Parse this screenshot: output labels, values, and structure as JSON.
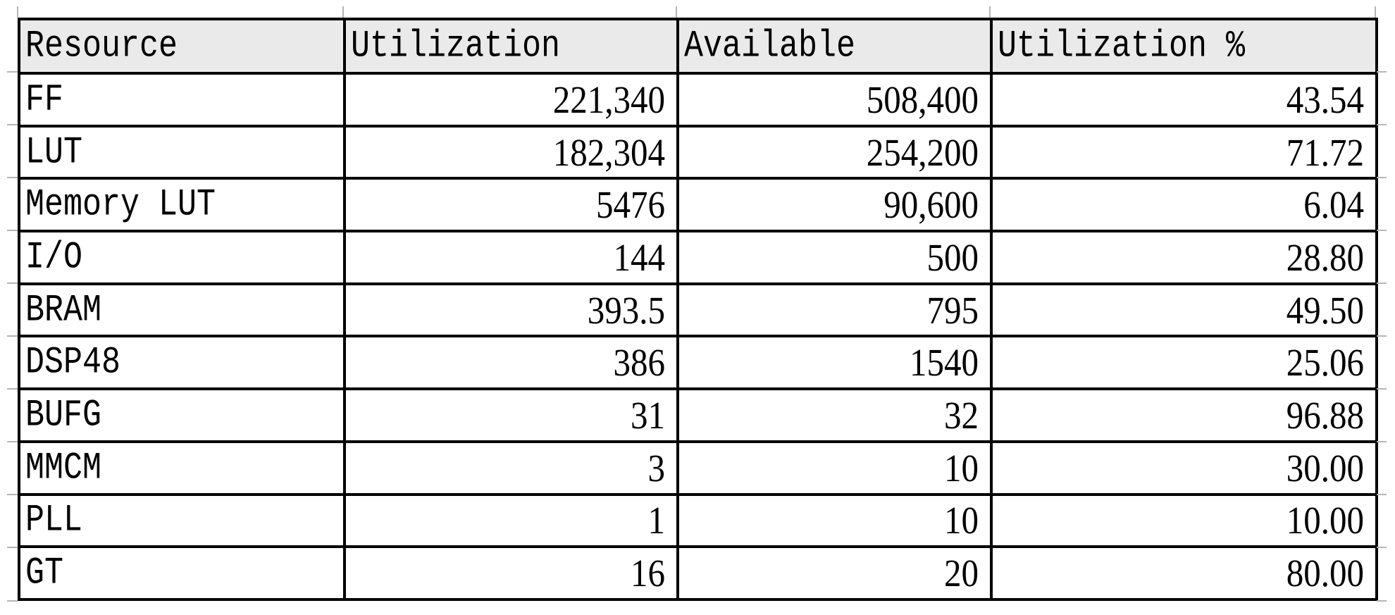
{
  "table": {
    "columns": [
      "Resource",
      "Utilization",
      "Available",
      "Utilization %"
    ],
    "rows": [
      {
        "resource": "FF",
        "utilization": "221,340",
        "available": "508,400",
        "utilization_pct": "43.54"
      },
      {
        "resource": "LUT",
        "utilization": "182,304",
        "available": "254,200",
        "utilization_pct": "71.72"
      },
      {
        "resource": "Memory LUT",
        "utilization": "5476",
        "available": "90,600",
        "utilization_pct": "6.04"
      },
      {
        "resource": "I/O",
        "utilization": "144",
        "available": "500",
        "utilization_pct": "28.80"
      },
      {
        "resource": "BRAM",
        "utilization": "393.5",
        "available": "795",
        "utilization_pct": "49.50"
      },
      {
        "resource": "DSP48",
        "utilization": "386",
        "available": "1540",
        "utilization_pct": "25.06"
      },
      {
        "resource": "BUFG",
        "utilization": "31",
        "available": "32",
        "utilization_pct": "96.88"
      },
      {
        "resource": "MMCM",
        "utilization": "3",
        "available": "10",
        "utilization_pct": "30.00"
      },
      {
        "resource": "PLL",
        "utilization": "1",
        "available": "10",
        "utilization_pct": "10.00"
      },
      {
        "resource": "GT",
        "utilization": "16",
        "available": "20",
        "utilization_pct": "80.00"
      }
    ]
  },
  "colors": {
    "header_bg": "#eaeaea",
    "cell_bg": "#ffffff",
    "border": "#000000",
    "text": "#000000",
    "gridline_stub": "#b5b5b5"
  }
}
